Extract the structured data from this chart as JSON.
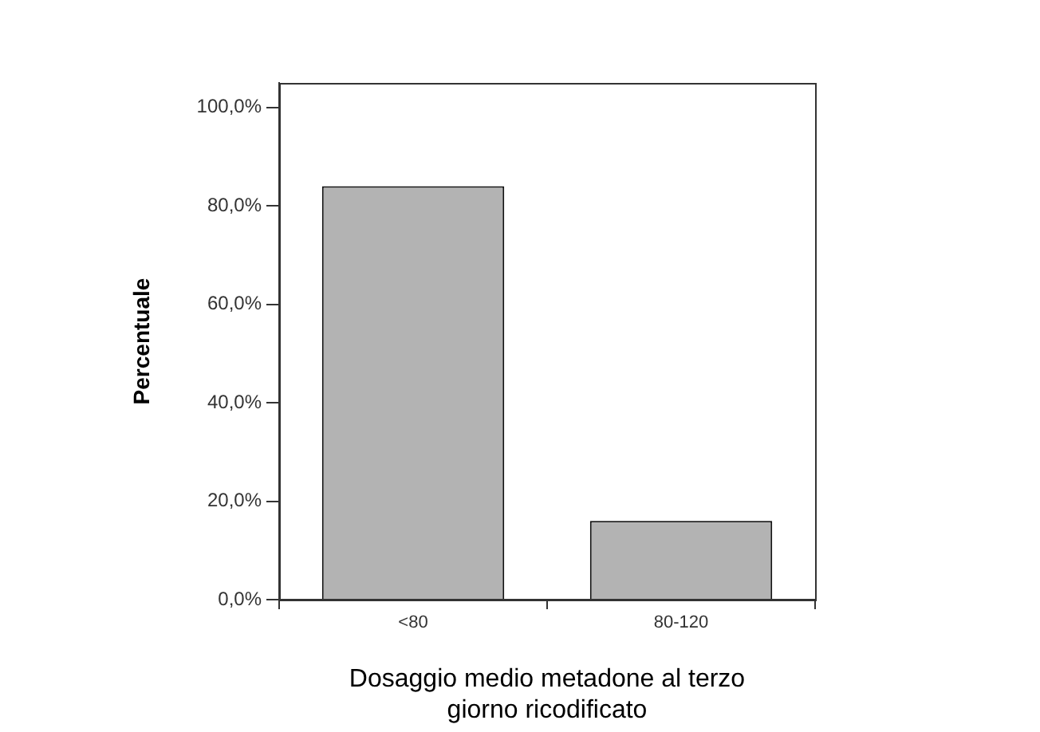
{
  "chart_data": {
    "type": "bar",
    "xlabel": "Dosaggio medio metadone al terzo giorno ricodificato",
    "ylabel": "Percentuale",
    "categories": [
      "<80",
      "80-120"
    ],
    "values": [
      84,
      16
    ],
    "color": "#b3b3b3",
    "ylim": [
      0,
      105
    ],
    "yticks": [
      {
        "value": 0,
        "label": "0,0%"
      },
      {
        "value": 20,
        "label": "20,0%"
      },
      {
        "value": 40,
        "label": "40,0%"
      },
      {
        "value": 60,
        "label": "60,0%"
      },
      {
        "value": 80,
        "label": "80,0%"
      },
      {
        "value": 100,
        "label": "100,0%"
      }
    ],
    "grid": false,
    "legend": false
  }
}
